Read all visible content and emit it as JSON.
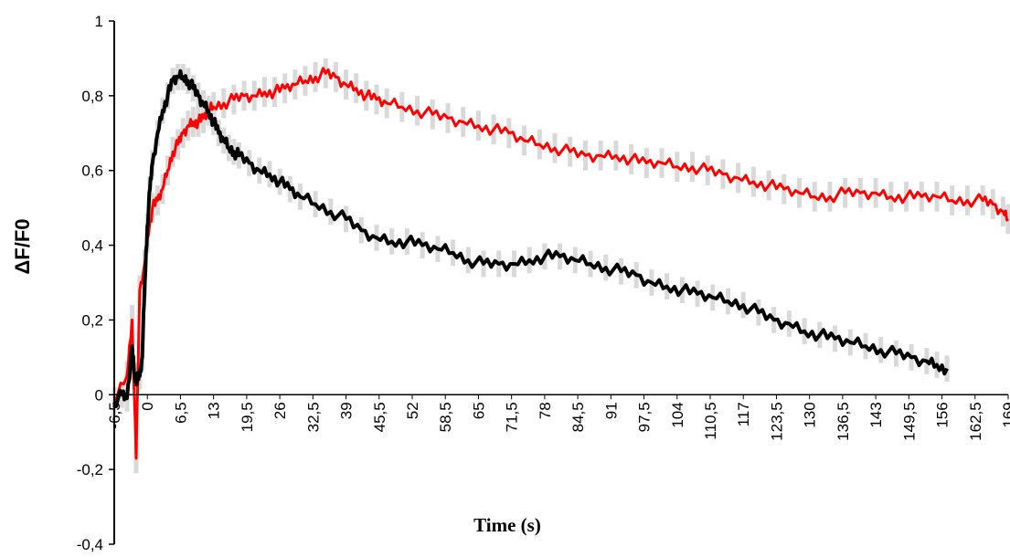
{
  "chart_data": {
    "type": "line",
    "xlabel": "Time (s)",
    "ylabel": "ΔF/F0",
    "ylim": [
      -0.4,
      1
    ],
    "xlim": [
      -6.5,
      169
    ],
    "grid": false,
    "legend": "none",
    "yticks": [
      1,
      0.8,
      0.6,
      0.4,
      0.2,
      0,
      -0.2,
      -0.4
    ],
    "ytick_labels": [
      "1",
      "0,8",
      "0,6",
      "0,4",
      "0,2",
      "0",
      "-0,2",
      "-0,4"
    ],
    "xticks": [
      -6.5,
      0,
      6.5,
      13,
      19.5,
      26,
      32.5,
      39,
      45.5,
      52,
      58.5,
      65,
      71.5,
      78,
      84.5,
      91,
      97.5,
      104,
      110.5,
      117,
      123.5,
      130,
      136.5,
      143,
      149.5,
      156,
      162.5,
      169
    ],
    "xtick_labels": [
      "-6,5",
      "0",
      "6,5",
      "13",
      "19,5",
      "26",
      "32,5",
      "39",
      "45,5",
      "52",
      "58,5",
      "65",
      "71,5",
      "78",
      "84,5",
      "91",
      "97,5",
      "104",
      "110,5",
      "117",
      "123,5",
      "130",
      "136,5",
      "143",
      "149,5",
      "156",
      "162,5",
      "169"
    ],
    "series": [
      {
        "color": "#ff0000",
        "error_color": "#d9d9d9",
        "x": [
          -6.5,
          -4,
          -3,
          -2.2,
          -1.5,
          -0.5,
          0,
          1,
          2,
          3,
          4,
          5,
          6,
          7,
          8,
          9,
          10,
          11,
          12,
          13,
          15,
          17,
          19,
          21,
          23,
          25,
          27,
          29,
          31,
          33,
          35,
          37,
          39,
          41,
          43,
          45,
          47,
          50,
          53,
          56,
          59,
          62,
          65,
          68,
          71,
          74,
          77,
          80,
          83,
          86,
          89,
          92,
          95,
          98,
          101,
          104,
          107,
          110,
          113,
          116,
          119,
          122,
          125,
          128,
          131,
          134,
          137,
          140,
          143,
          146,
          149,
          152,
          155,
          158,
          161,
          164,
          166,
          168,
          169
        ],
        "y": [
          -0.02,
          0.05,
          0.2,
          -0.17,
          0.28,
          0.35,
          0.42,
          0.5,
          0.52,
          0.55,
          0.6,
          0.65,
          0.67,
          0.7,
          0.72,
          0.73,
          0.73,
          0.74,
          0.76,
          0.77,
          0.78,
          0.79,
          0.8,
          0.8,
          0.81,
          0.81,
          0.82,
          0.83,
          0.84,
          0.85,
          0.86,
          0.85,
          0.83,
          0.82,
          0.8,
          0.79,
          0.78,
          0.77,
          0.76,
          0.75,
          0.74,
          0.73,
          0.72,
          0.71,
          0.7,
          0.68,
          0.67,
          0.66,
          0.65,
          0.64,
          0.64,
          0.64,
          0.63,
          0.62,
          0.62,
          0.61,
          0.61,
          0.6,
          0.59,
          0.58,
          0.57,
          0.56,
          0.55,
          0.54,
          0.53,
          0.53,
          0.54,
          0.54,
          0.54,
          0.53,
          0.53,
          0.53,
          0.53,
          0.52,
          0.52,
          0.52,
          0.51,
          0.49,
          0.47
        ],
        "err": 0.04
      },
      {
        "color": "#000000",
        "error_color": "#d9d9d9",
        "x": [
          -6.5,
          -5,
          -4,
          -3,
          -2.5,
          -2,
          -1.5,
          -1,
          -0.5,
          0,
          0.5,
          1,
          2,
          3,
          4,
          5,
          6,
          7,
          8,
          9,
          10,
          11,
          12,
          13,
          14,
          15,
          16,
          17,
          18,
          20,
          22,
          24,
          26,
          28,
          30,
          33,
          36,
          39,
          42,
          45,
          48,
          51,
          54,
          57,
          60,
          63,
          66,
          69,
          72,
          75,
          78,
          81,
          84,
          87,
          90,
          93,
          96,
          99,
          102,
          105,
          108,
          111,
          114,
          117,
          120,
          123,
          126,
          129,
          132,
          135,
          138,
          141,
          144,
          147,
          150,
          153,
          155,
          157
        ],
        "y": [
          -0.02,
          0,
          -0.01,
          0.13,
          0.05,
          0.04,
          0.05,
          0.1,
          0.3,
          0.45,
          0.55,
          0.62,
          0.7,
          0.76,
          0.8,
          0.84,
          0.85,
          0.85,
          0.84,
          0.82,
          0.8,
          0.78,
          0.76,
          0.73,
          0.7,
          0.68,
          0.66,
          0.65,
          0.64,
          0.62,
          0.6,
          0.59,
          0.57,
          0.55,
          0.53,
          0.51,
          0.49,
          0.47,
          0.44,
          0.42,
          0.41,
          0.41,
          0.4,
          0.39,
          0.38,
          0.36,
          0.35,
          0.35,
          0.35,
          0.36,
          0.37,
          0.37,
          0.36,
          0.35,
          0.34,
          0.33,
          0.32,
          0.3,
          0.29,
          0.28,
          0.27,
          0.26,
          0.25,
          0.24,
          0.22,
          0.2,
          0.19,
          0.17,
          0.16,
          0.15,
          0.14,
          0.13,
          0.12,
          0.11,
          0.1,
          0.09,
          0.08,
          0.07
        ],
        "err": 0.035
      }
    ]
  }
}
